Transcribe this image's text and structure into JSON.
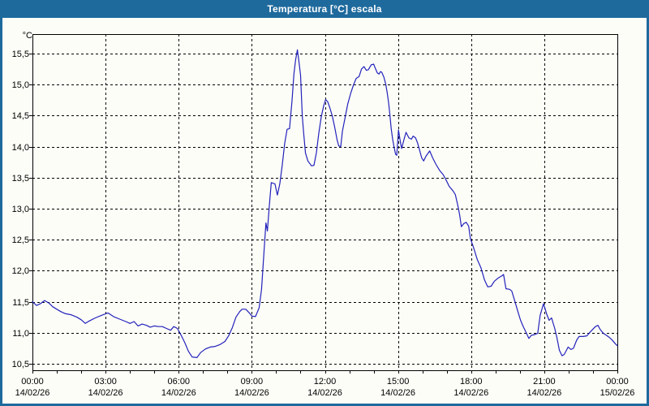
{
  "window": {
    "title": "Temperatura [°C] escala"
  },
  "colors": {
    "titlebar": "#1e6a9d",
    "window_border": "#1e6a9d",
    "background": "#fdfdf8",
    "grid": "#000000",
    "plot_border": "#000000",
    "line": "#2222bb",
    "title_text": "#ffffff"
  },
  "chart_data": {
    "type": "line",
    "title": "Temperatura [°C] escala",
    "ylabel": "°C",
    "xlabel": "",
    "legend": null,
    "grid": "dashed",
    "xlim_hours": [
      0,
      24
    ],
    "ylim": [
      10.4,
      15.8
    ],
    "y_ticks": [
      {
        "value": 15.5,
        "label": "15,5"
      },
      {
        "value": 15.0,
        "label": "15,0"
      },
      {
        "value": 14.5,
        "label": "14,5"
      },
      {
        "value": 14.0,
        "label": "14,0"
      },
      {
        "value": 13.5,
        "label": "13,5"
      },
      {
        "value": 13.0,
        "label": "13,0"
      },
      {
        "value": 12.5,
        "label": "12,5"
      },
      {
        "value": 12.0,
        "label": "12,0"
      },
      {
        "value": 11.5,
        "label": "11,5"
      },
      {
        "value": 11.0,
        "label": "11,0"
      },
      {
        "value": 10.5,
        "label": "10,5"
      }
    ],
    "x_ticks": [
      {
        "hour": 0,
        "time": "00:00",
        "date": "14/02/26"
      },
      {
        "hour": 3,
        "time": "03:00",
        "date": "14/02/26"
      },
      {
        "hour": 6,
        "time": "06:00",
        "date": "14/02/26"
      },
      {
        "hour": 9,
        "time": "09:00",
        "date": "14/02/26"
      },
      {
        "hour": 12,
        "time": "12:00",
        "date": "14/02/26"
      },
      {
        "hour": 15,
        "time": "15:00",
        "date": "14/02/26"
      },
      {
        "hour": 18,
        "time": "18:00",
        "date": "14/02/26"
      },
      {
        "hour": 21,
        "time": "21:00",
        "date": "14/02/26"
      },
      {
        "hour": 24,
        "time": "00:00",
        "date": "15/02/26"
      }
    ],
    "minor_x_tick_every_hours": 1,
    "points": [
      [
        0,
        11.5
      ],
      [
        0.17,
        11.44
      ],
      [
        0.33,
        11.47
      ],
      [
        0.5,
        11.52
      ],
      [
        0.67,
        11.48
      ],
      [
        0.83,
        11.42
      ],
      [
        1,
        11.38
      ],
      [
        1.17,
        11.34
      ],
      [
        1.33,
        11.31
      ],
      [
        1.58,
        11.29
      ],
      [
        1.83,
        11.25
      ],
      [
        2,
        11.21
      ],
      [
        2.17,
        11.15
      ],
      [
        2.33,
        11.19
      ],
      [
        2.58,
        11.24
      ],
      [
        2.83,
        11.28
      ],
      [
        3.1,
        11.32
      ],
      [
        3.33,
        11.26
      ],
      [
        3.58,
        11.22
      ],
      [
        3.83,
        11.18
      ],
      [
        4,
        11.15
      ],
      [
        4.17,
        11.18
      ],
      [
        4.33,
        11.11
      ],
      [
        4.5,
        11.14
      ],
      [
        4.67,
        11.12
      ],
      [
        4.83,
        11.09
      ],
      [
        5,
        11.11
      ],
      [
        5.17,
        11.1
      ],
      [
        5.33,
        11.1
      ],
      [
        5.5,
        11.07
      ],
      [
        5.67,
        11.04
      ],
      [
        5.8,
        11.1
      ],
      [
        5.95,
        11.07
      ],
      [
        6.1,
        10.96
      ],
      [
        6.25,
        10.84
      ],
      [
        6.4,
        10.7
      ],
      [
        6.55,
        10.61
      ],
      [
        6.75,
        10.6
      ],
      [
        6.9,
        10.68
      ],
      [
        7.1,
        10.74
      ],
      [
        7.3,
        10.77
      ],
      [
        7.5,
        10.78
      ],
      [
        7.7,
        10.81
      ],
      [
        7.9,
        10.86
      ],
      [
        8.05,
        10.95
      ],
      [
        8.2,
        11.08
      ],
      [
        8.35,
        11.25
      ],
      [
        8.5,
        11.34
      ],
      [
        8.6,
        11.38
      ],
      [
        8.75,
        11.38
      ],
      [
        8.9,
        11.32
      ],
      [
        9,
        11.27
      ],
      [
        9.15,
        11.26
      ],
      [
        9.3,
        11.4
      ],
      [
        9.4,
        11.7
      ],
      [
        9.5,
        12.3
      ],
      [
        9.58,
        12.77
      ],
      [
        9.64,
        12.64
      ],
      [
        9.72,
        13.05
      ],
      [
        9.8,
        13.42
      ],
      [
        9.95,
        13.4
      ],
      [
        10.05,
        13.22
      ],
      [
        10.15,
        13.4
      ],
      [
        10.25,
        13.7
      ],
      [
        10.35,
        14.05
      ],
      [
        10.45,
        14.28
      ],
      [
        10.55,
        14.29
      ],
      [
        10.65,
        14.73
      ],
      [
        10.73,
        15.17
      ],
      [
        10.8,
        15.4
      ],
      [
        10.87,
        15.56
      ],
      [
        10.93,
        15.38
      ],
      [
        11,
        15.15
      ],
      [
        11.07,
        14.5
      ],
      [
        11.12,
        14.25
      ],
      [
        11.2,
        13.9
      ],
      [
        11.3,
        13.77
      ],
      [
        11.45,
        13.69
      ],
      [
        11.55,
        13.7
      ],
      [
        11.65,
        13.9
      ],
      [
        11.75,
        14.22
      ],
      [
        11.85,
        14.48
      ],
      [
        11.95,
        14.66
      ],
      [
        12.03,
        14.76
      ],
      [
        12.12,
        14.72
      ],
      [
        12.2,
        14.63
      ],
      [
        12.3,
        14.5
      ],
      [
        12.4,
        14.32
      ],
      [
        12.5,
        14.11
      ],
      [
        12.57,
        14.01
      ],
      [
        12.65,
        14
      ],
      [
        12.72,
        14.25
      ],
      [
        12.83,
        14.47
      ],
      [
        12.94,
        14.69
      ],
      [
        13.06,
        14.86
      ],
      [
        13.17,
        14.99
      ],
      [
        13.28,
        15.1
      ],
      [
        13.4,
        15.13
      ],
      [
        13.5,
        15.25
      ],
      [
        13.6,
        15.29
      ],
      [
        13.7,
        15.23
      ],
      [
        13.78,
        15.24
      ],
      [
        13.9,
        15.32
      ],
      [
        14,
        15.33
      ],
      [
        14.07,
        15.26
      ],
      [
        14.15,
        15.19
      ],
      [
        14.22,
        15.17
      ],
      [
        14.28,
        15.21
      ],
      [
        14.33,
        15.2
      ],
      [
        14.42,
        15.12
      ],
      [
        14.5,
        15
      ],
      [
        14.56,
        14.86
      ],
      [
        14.62,
        14.69
      ],
      [
        14.67,
        14.5
      ],
      [
        14.72,
        14.29
      ],
      [
        14.78,
        14.12
      ],
      [
        14.83,
        14.01
      ],
      [
        14.9,
        13.88
      ],
      [
        14.95,
        13.86
      ],
      [
        15.02,
        14.27
      ],
      [
        15.1,
        14.07
      ],
      [
        15.15,
        13.97
      ],
      [
        15.25,
        14.12
      ],
      [
        15.33,
        14.23
      ],
      [
        15.45,
        14.14
      ],
      [
        15.55,
        14.12
      ],
      [
        15.62,
        14.17
      ],
      [
        15.72,
        14.14
      ],
      [
        15.8,
        14.06
      ],
      [
        15.88,
        13.95
      ],
      [
        15.97,
        13.82
      ],
      [
        16.05,
        13.77
      ],
      [
        16.15,
        13.85
      ],
      [
        16.3,
        13.93
      ],
      [
        16.42,
        13.82
      ],
      [
        16.55,
        13.72
      ],
      [
        16.7,
        13.62
      ],
      [
        16.85,
        13.55
      ],
      [
        16.95,
        13.48
      ],
      [
        17.1,
        13.36
      ],
      [
        17.25,
        13.29
      ],
      [
        17.35,
        13.23
      ],
      [
        17.45,
        13.06
      ],
      [
        17.53,
        12.9
      ],
      [
        17.6,
        12.71
      ],
      [
        17.7,
        12.76
      ],
      [
        17.8,
        12.78
      ],
      [
        17.9,
        12.72
      ],
      [
        17.97,
        12.52
      ],
      [
        18.1,
        12.37
      ],
      [
        18.25,
        12.18
      ],
      [
        18.4,
        12.05
      ],
      [
        18.55,
        11.85
      ],
      [
        18.68,
        11.74
      ],
      [
        18.82,
        11.75
      ],
      [
        18.95,
        11.83
      ],
      [
        19.1,
        11.88
      ],
      [
        19.27,
        11.92
      ],
      [
        19.33,
        11.94
      ],
      [
        19.43,
        11.71
      ],
      [
        19.58,
        11.7
      ],
      [
        19.67,
        11.67
      ],
      [
        19.8,
        11.5
      ],
      [
        19.92,
        11.34
      ],
      [
        20.03,
        11.2
      ],
      [
        20.15,
        11.09
      ],
      [
        20.25,
        11.01
      ],
      [
        20.37,
        10.91
      ],
      [
        20.47,
        10.96
      ],
      [
        20.6,
        10.97
      ],
      [
        20.73,
        10.99
      ],
      [
        20.83,
        11.28
      ],
      [
        20.97,
        11.47
      ],
      [
        21.1,
        11.3
      ],
      [
        21.2,
        11.2
      ],
      [
        21.3,
        11.24
      ],
      [
        21.43,
        11.07
      ],
      [
        21.52,
        10.92
      ],
      [
        21.62,
        10.72
      ],
      [
        21.73,
        10.63
      ],
      [
        21.82,
        10.65
      ],
      [
        21.9,
        10.71
      ],
      [
        21.98,
        10.77
      ],
      [
        22.1,
        10.73
      ],
      [
        22.2,
        10.75
      ],
      [
        22.33,
        10.88
      ],
      [
        22.43,
        10.94
      ],
      [
        22.6,
        10.94
      ],
      [
        22.75,
        10.95
      ],
      [
        22.9,
        11.02
      ],
      [
        23,
        11.06
      ],
      [
        23.1,
        11.1
      ],
      [
        23.2,
        11.12
      ],
      [
        23.3,
        11.05
      ],
      [
        23.43,
        10.99
      ],
      [
        23.55,
        10.96
      ],
      [
        23.65,
        10.93
      ],
      [
        23.77,
        10.89
      ],
      [
        23.9,
        10.83
      ],
      [
        24,
        10.79
      ]
    ]
  }
}
